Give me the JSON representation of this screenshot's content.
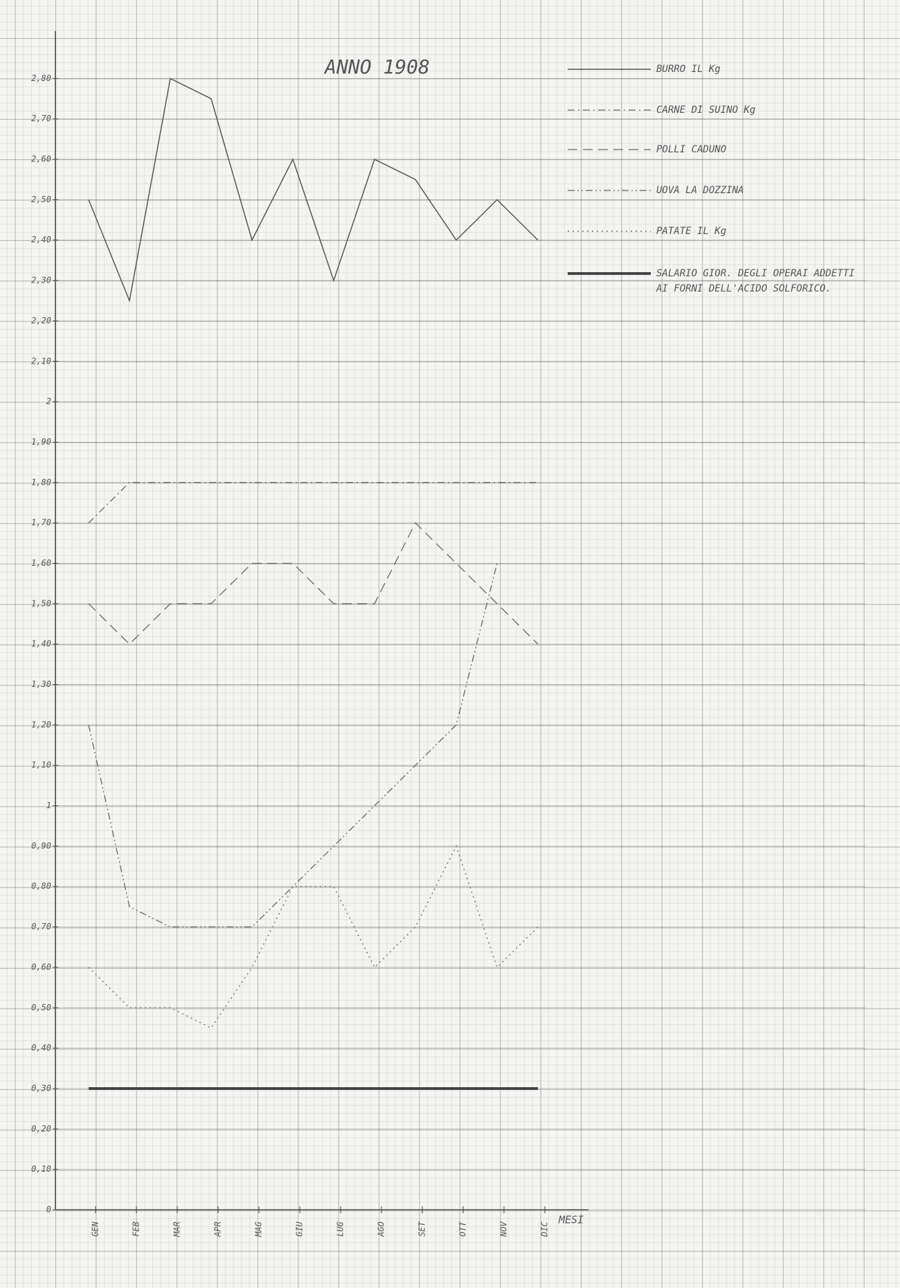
{
  "chart_data": {
    "type": "line",
    "title": "ANNO 1908",
    "x_label": "MESI",
    "categories": [
      "GEN",
      "FEB",
      "MAR",
      "APR",
      "MAG",
      "GIU",
      "LUG",
      "AGO",
      "SET",
      "OTT",
      "NOV",
      "DIC"
    ],
    "series": [
      {
        "name": "BURRO IL Kg",
        "color": "#555555",
        "values": [
          2.5,
          2.25,
          2.8,
          2.75,
          2.4,
          2.6,
          2.3,
          2.6,
          2.55,
          2.4,
          2.5,
          2.4
        ]
      },
      {
        "name": "CARNE DI SUINO Kg",
        "color": "#666666",
        "values": [
          1.7,
          1.8,
          1.8,
          1.8,
          1.8,
          1.8,
          1.8,
          1.8,
          1.8,
          1.8,
          1.8,
          1.8
        ]
      },
      {
        "name": "POLLI CADUNO",
        "color": "#666666",
        "values": [
          1.5,
          1.4,
          1.5,
          1.5,
          1.6,
          1.6,
          1.5,
          1.5,
          1.7,
          1.6,
          1.5,
          1.4
        ]
      },
      {
        "name": "UOVA LA DOZZINA",
        "color": "#666666",
        "values": [
          1.2,
          0.75,
          0.7,
          0.7,
          0.7,
          0.8,
          0.9,
          1.0,
          1.1,
          1.2,
          1.6,
          null
        ]
      },
      {
        "name": "PATATE IL Kg",
        "color": "#777777",
        "values": [
          0.6,
          0.5,
          0.5,
          0.45,
          0.6,
          0.8,
          0.8,
          0.6,
          0.7,
          0.9,
          0.6,
          0.7
        ]
      },
      {
        "name": "SALARIO GIOR. DEGLI OPERAI ADDETTI AI FORNI DELL'ACIDO SOLFORICO.",
        "color": "#444444",
        "values": [
          0.3,
          0.3,
          0.3,
          0.3,
          0.3,
          0.3,
          0.3,
          0.3,
          0.3,
          0.3,
          0.3,
          0.3
        ]
      }
    ],
    "ylim": [
      0,
      2.9
    ],
    "yticks": [
      0,
      {
        "value": 0.1,
        "label": "0,10"
      },
      {
        "value": 0.2,
        "label": "0,20"
      },
      {
        "value": 0.3,
        "label": "0,30"
      },
      {
        "value": 0.4,
        "label": "0,40"
      },
      {
        "value": 0.5,
        "label": "0,50"
      },
      {
        "value": 0.6,
        "label": "0,60"
      },
      {
        "value": 0.7,
        "label": "0,70"
      },
      {
        "value": 0.8,
        "label": "0,80"
      },
      {
        "value": 0.9,
        "label": "0,90"
      },
      1,
      {
        "value": 1.1,
        "label": "1,10"
      },
      {
        "value": 1.2,
        "label": "1,20"
      },
      {
        "value": 1.3,
        "label": "1,30"
      },
      {
        "value": 1.4,
        "label": "1,40"
      },
      {
        "value": 1.5,
        "label": "1,50"
      },
      {
        "value": 1.6,
        "label": "1,60"
      },
      {
        "value": 1.7,
        "label": "1,70"
      },
      {
        "value": 1.8,
        "label": "1,80"
      },
      {
        "value": 1.9,
        "label": "1,90"
      },
      2,
      {
        "value": 2.1,
        "label": "2,10"
      },
      {
        "value": 2.2,
        "label": "2,20"
      },
      {
        "value": 2.3,
        "label": "2,30"
      },
      {
        "value": 2.4,
        "label": "2,40"
      },
      {
        "value": 2.5,
        "label": "2,50"
      },
      {
        "value": 2.6,
        "label": "2,60"
      },
      {
        "value": 2.7,
        "label": "2,70"
      },
      {
        "value": 2.8,
        "label": "2,80"
      }
    ],
    "grid": true
  }
}
